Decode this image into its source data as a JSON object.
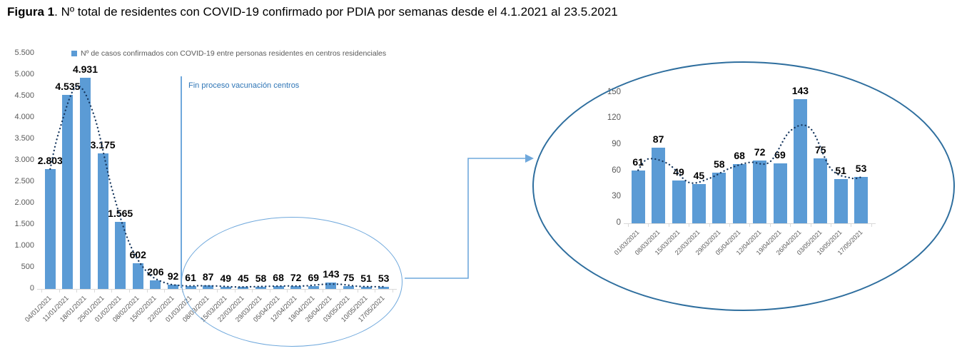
{
  "figure": {
    "title_bold": "Figura 1",
    "title_rest": ". Nº total de residentes con COVID-19 confirmado por PDIA por semanas desde el 4.1.2021 al 23.5.2021"
  },
  "legend": {
    "label": "Nº de casos confirmados con COVID-19 entre personas residentes en centros residenciales"
  },
  "annotation": {
    "vaccination_note": "Fin proceso vacunación centros"
  },
  "colors": {
    "bar": "#5B9BD5",
    "trend_dots": "#17375E",
    "callout_light": "#6FA8DC",
    "callout_dark": "#2E6E9E",
    "note_text": "#2E75B6",
    "axis_text": "#595959",
    "axis_line": "#D9D9D9"
  },
  "chart_data": [
    {
      "id": "main",
      "type": "bar",
      "title": "Nº de casos confirmados con COVID-19 entre personas residentes en centros residenciales",
      "categories": [
        "04/01/2021",
        "11/01/2021",
        "18/01/2021",
        "25/01/2021",
        "01/02/2021",
        "08/02/2021",
        "15/02/2021",
        "22/02/2021",
        "01/03/2021",
        "08/03/2021",
        "15/03/2021",
        "22/03/2021",
        "29/03/2021",
        "05/04/2021",
        "12/04/2021",
        "19/04/2021",
        "26/04/2021",
        "03/05/2021",
        "10/05/2021",
        "17/05/2021"
      ],
      "values": [
        2803,
        4535,
        4931,
        3175,
        1565,
        602,
        206,
        92,
        61,
        87,
        49,
        45,
        58,
        68,
        72,
        69,
        143,
        75,
        51,
        53
      ],
      "value_labels": [
        "2.803",
        "4.535",
        "4.931",
        "3.175",
        "1.565",
        "602",
        "206",
        "92",
        "61",
        "87",
        "49",
        "45",
        "58",
        "68",
        "72",
        "69",
        "143",
        "75",
        "51",
        "53"
      ],
      "xlabel": "",
      "ylabel": "",
      "ylim": [
        0,
        5500
      ],
      "yticks": [
        0,
        500,
        1000,
        1500,
        2000,
        2500,
        3000,
        3500,
        4000,
        4500,
        5000,
        5500
      ],
      "ytick_labels": [
        "0",
        "500",
        "1.000",
        "1.500",
        "2.000",
        "2.500",
        "3.000",
        "3.500",
        "4.000",
        "4.500",
        "5.000",
        "5.500"
      ],
      "grid": false,
      "legend_position": "top",
      "trendline": "dotted 2-period moving average"
    },
    {
      "id": "zoom",
      "type": "bar",
      "title": "",
      "categories": [
        "01/03/2021",
        "08/03/2021",
        "15/03/2021",
        "22/03/2021",
        "29/03/2021",
        "05/04/2021",
        "12/04/2021",
        "19/04/2021",
        "26/04/2021",
        "03/05/2021",
        "10/05/2021",
        "17/05/2021"
      ],
      "values": [
        61,
        87,
        49,
        45,
        58,
        68,
        72,
        69,
        143,
        75,
        51,
        53
      ],
      "value_labels": [
        "61",
        "87",
        "49",
        "45",
        "58",
        "68",
        "72",
        "69",
        "143",
        "75",
        "51",
        "53"
      ],
      "xlabel": "",
      "ylabel": "",
      "ylim": [
        0,
        150
      ],
      "yticks": [
        0,
        30,
        60,
        90,
        120,
        150
      ],
      "ytick_labels": [
        "0",
        "30",
        "60",
        "90",
        "120",
        "150"
      ],
      "grid": false,
      "legend_position": "none",
      "trendline": "dotted 2-period moving average"
    }
  ]
}
